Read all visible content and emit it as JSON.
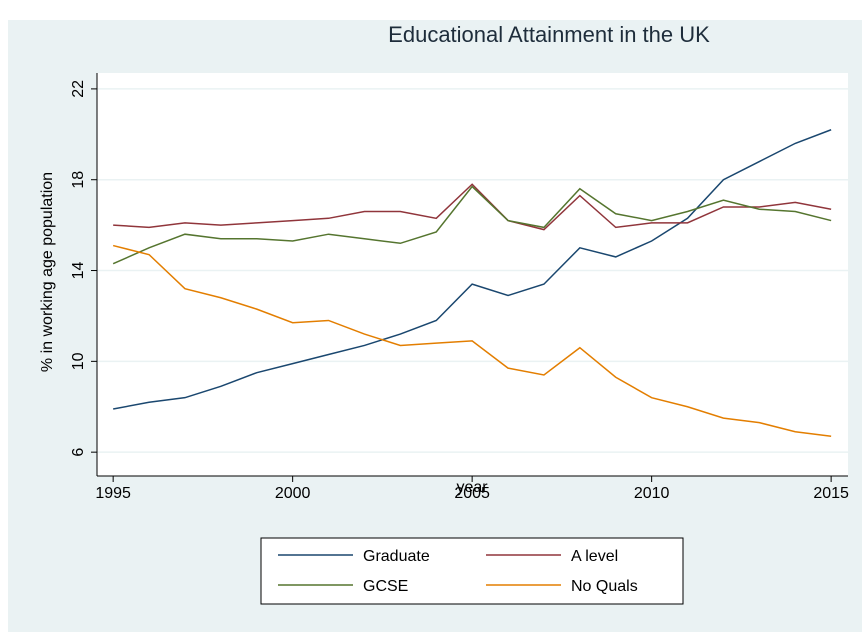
{
  "chart_data": {
    "type": "line",
    "title": "Educational Attainment in the UK",
    "x_label": "year",
    "y_label": "% in working age population",
    "x": [
      1995,
      1996,
      1997,
      1998,
      1999,
      2000,
      2001,
      2002,
      2003,
      2004,
      2005,
      2006,
      2007,
      2008,
      2009,
      2010,
      2011,
      2012,
      2013,
      2014,
      2015
    ],
    "series": [
      {
        "name": "Graduate",
        "color": "#1a476f",
        "values": [
          7.9,
          8.2,
          8.4,
          8.9,
          9.5,
          9.9,
          10.3,
          10.7,
          11.2,
          11.8,
          13.4,
          12.9,
          13.4,
          15.0,
          14.6,
          15.3,
          16.3,
          18.0,
          18.8,
          19.6,
          20.2
        ]
      },
      {
        "name": "A level",
        "color": "#90353b",
        "values": [
          16.0,
          15.9,
          16.1,
          16.0,
          16.1,
          16.2,
          16.3,
          16.6,
          16.6,
          16.3,
          17.8,
          16.2,
          15.8,
          17.3,
          15.9,
          16.1,
          16.1,
          16.8,
          16.8,
          17.0,
          16.7
        ]
      },
      {
        "name": "GCSE",
        "color": "#55752f",
        "values": [
          14.3,
          15.0,
          15.6,
          15.4,
          15.4,
          15.3,
          15.6,
          15.4,
          15.2,
          15.7,
          17.7,
          16.2,
          15.9,
          17.6,
          16.5,
          16.2,
          16.6,
          17.1,
          16.7,
          16.6,
          16.2
        ]
      },
      {
        "name": "No Quals",
        "color": "#e37e00",
        "values": [
          15.1,
          14.7,
          13.2,
          12.8,
          12.3,
          11.7,
          11.8,
          11.2,
          10.7,
          10.8,
          10.9,
          9.7,
          9.4,
          10.6,
          9.3,
          8.4,
          8.0,
          7.5,
          7.3,
          6.9,
          6.7
        ]
      }
    ],
    "xlim": [
      1994.55,
      2015.47
    ],
    "xticks": [
      1995,
      2000,
      2005,
      2010,
      2015
    ],
    "ylim": [
      4.95,
      22.7
    ],
    "yticks": [
      6,
      10,
      14,
      18,
      22
    ],
    "grid": true
  }
}
